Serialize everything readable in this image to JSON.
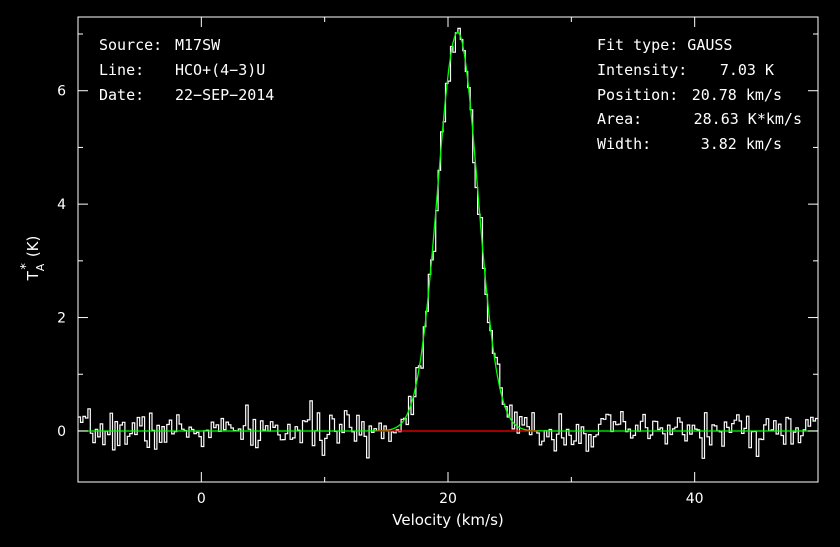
{
  "header_left": {
    "source_label": "Source:",
    "source_value": "M17SW",
    "line_label": "Line:",
    "line_value": "HCO+(4−3)U",
    "date_label": "Date:",
    "date_value": "22−SEP−2014"
  },
  "fit_info": {
    "fit_type": "Fit type: GAUSS",
    "intensity_label": "Intensity:",
    "intensity_value": "7.03 K",
    "position_label": "Position:",
    "position_value": "20.78 km/s",
    "area_label": "Area:",
    "area_value": "28.63 K*km/s",
    "width_label": "Width:",
    "width_value": "3.82 km/s"
  },
  "chart_data": {
    "type": "line",
    "title": "",
    "xlabel": "Velocity (km/s)",
    "ylabel": "T*A (K)",
    "ylabel_main": "T",
    "ylabel_sub": "A",
    "ylabel_sup": "*",
    "ylabel_unit": "(K)",
    "xlim": [
      -10,
      50
    ],
    "ylim": [
      -0.9,
      7.3
    ],
    "xticks": [
      0,
      20,
      40
    ],
    "xtick_labels": [
      "0",
      "20",
      "40"
    ],
    "yticks": [
      0,
      2,
      4,
      6
    ],
    "ytick_labels": [
      "0",
      "2",
      "4",
      "6"
    ],
    "grid": false,
    "legend": "none",
    "colors": {
      "background": "#000000",
      "axes": "#ffffff",
      "spectrum": "#ffffff",
      "fit": "#00ff00",
      "baseline": "#ff0000"
    },
    "series": [
      {
        "style": "histogram",
        "x0": -10,
        "dx": 0.2,
        "noise_seed": 7,
        "noise_sigma": 0.17,
        "peak_amplitude": 7.03,
        "peak_center": 20.78,
        "peak_fwhm": 3.82
      },
      {
        "style": "gaussian_fit",
        "amplitude": 7.03,
        "center": 20.78,
        "fwhm": 3.82
      },
      {
        "style": "baseline",
        "x": [
          14.2,
          27.2
        ],
        "y": [
          0,
          0
        ]
      }
    ]
  }
}
